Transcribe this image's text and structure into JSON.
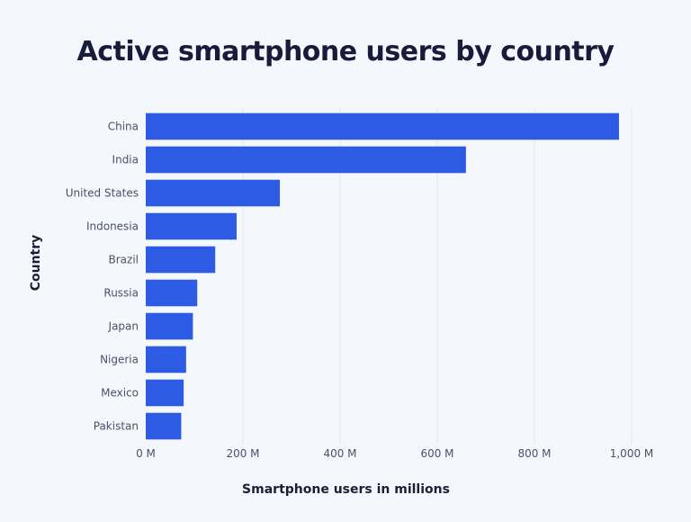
{
  "chart_data": {
    "type": "bar",
    "orientation": "horizontal",
    "title": "Active smartphone users by country",
    "xlabel": "Smartphone users in millions",
    "ylabel": "Country",
    "categories": [
      "China",
      "India",
      "United States",
      "Indonesia",
      "Brazil",
      "Russia",
      "Japan",
      "Nigeria",
      "Mexico",
      "Pakistan"
    ],
    "values": [
      974,
      659,
      276,
      187,
      143,
      106,
      97,
      83,
      78,
      73
    ],
    "xlim": [
      0,
      1000
    ],
    "xticks": [
      0,
      200,
      400,
      600,
      800,
      1000
    ],
    "xtick_labels": [
      "0 M",
      "200 M",
      "400 M",
      "600 M",
      "800 M",
      "1,000 M"
    ],
    "grid": "vertical",
    "bar_color": "#2d5be3",
    "grid_color": "#dde8f5",
    "background": "#f4f8fd"
  }
}
